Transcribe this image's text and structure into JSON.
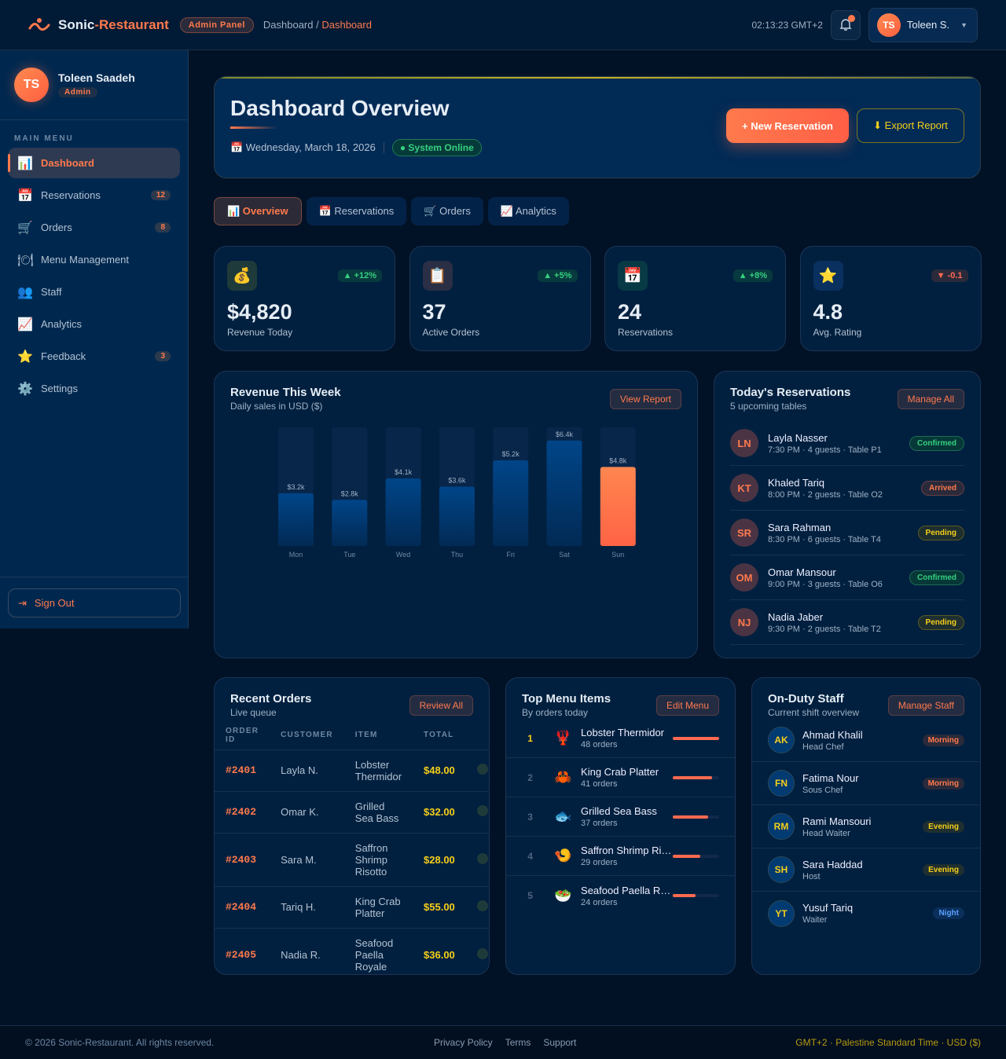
{
  "header": {
    "brand_a": "Sonic",
    "brand_b": "-Restaurant",
    "badge": "Admin Panel",
    "breadcrumb": [
      "Dashboard",
      "Dashboard"
    ],
    "clock": "02:13:23 GMT+2",
    "user_initials": "TS",
    "user_name": "Toleen S."
  },
  "sidebar": {
    "initials": "TS",
    "name": "Toleen Saadeh",
    "role": "Admin",
    "section": "MAIN MENU",
    "items": [
      {
        "icon": "📊",
        "label": "Dashboard",
        "badge": "",
        "active": true
      },
      {
        "icon": "📅",
        "label": "Reservations",
        "badge": "12"
      },
      {
        "icon": "🛒",
        "label": "Orders",
        "badge": "8"
      },
      {
        "icon": "🍽",
        "label": "Menu Management",
        "badge": ""
      },
      {
        "icon": "👥",
        "label": "Staff",
        "badge": ""
      },
      {
        "icon": "📈",
        "label": "Analytics",
        "badge": ""
      },
      {
        "icon": "⭐",
        "label": "Feedback",
        "badge": "3"
      },
      {
        "icon": "⚙️",
        "label": "Settings",
        "badge": ""
      }
    ],
    "sign_out": "Sign Out"
  },
  "hero": {
    "title": "Dashboard Overview",
    "date": "📅 Wednesday, March 18, 2026",
    "status": "● System Online",
    "new_btn": "+ New Reservation",
    "export_btn": "⬇ Export Report"
  },
  "tabs": [
    "📊 Overview",
    "📅 Reservations",
    "🛒 Orders",
    "📈 Analytics"
  ],
  "stats": [
    {
      "icon": "💰",
      "change": "▲ +12%",
      "dir": "up",
      "value": "$4,820",
      "label": "Revenue Today",
      "bg": "#1f3a3a"
    },
    {
      "icon": "📋",
      "change": "▲ +5%",
      "dir": "up",
      "value": "37",
      "label": "Active Orders",
      "bg": "#2a2f45"
    },
    {
      "icon": "📅",
      "change": "▲ +8%",
      "dir": "up",
      "value": "24",
      "label": "Reservations",
      "bg": "#073a45"
    },
    {
      "icon": "⭐",
      "change": "▼ -0.1",
      "dir": "dn",
      "value": "4.8",
      "label": "Avg. Rating",
      "bg": "#0a3060"
    }
  ],
  "revenue": {
    "title": "Revenue This Week",
    "subtitle": "Daily sales in USD ($)",
    "button": "View Report"
  },
  "chart_data": {
    "type": "bar",
    "categories": [
      "Mon",
      "Tue",
      "Wed",
      "Thu",
      "Fri",
      "Sat",
      "Sun"
    ],
    "values": [
      3200,
      2800,
      4100,
      3600,
      5200,
      6400,
      4800
    ],
    "labels": [
      "$3.2k",
      "$2.8k",
      "$4.1k",
      "$3.6k",
      "$5.2k",
      "$6.4k",
      "$4.8k"
    ],
    "ylim": [
      0,
      7200
    ],
    "highlight": "Sun",
    "colors": {
      "bar": "#00407a",
      "highlight": "#ff6a45"
    }
  },
  "reservations": {
    "title": "Today's Reservations",
    "subtitle": "5 upcoming tables",
    "button": "Manage All",
    "items": [
      {
        "initials": "LN",
        "name": "Layla Nasser",
        "detail": "7:30 PM · 4 guests · Table P1",
        "status": "Confirmed"
      },
      {
        "initials": "KT",
        "name": "Khaled Tariq",
        "detail": "8:00 PM · 2 guests · Table O2",
        "status": "Arrived"
      },
      {
        "initials": "SR",
        "name": "Sara Rahman",
        "detail": "8:30 PM · 6 guests · Table T4",
        "status": "Pending"
      },
      {
        "initials": "OM",
        "name": "Omar Mansour",
        "detail": "9:00 PM · 3 guests · Table O6",
        "status": "Confirmed"
      },
      {
        "initials": "NJ",
        "name": "Nadia Jaber",
        "detail": "9:30 PM · 2 guests · Table T2",
        "status": "Pending"
      }
    ]
  },
  "orders": {
    "title": "Recent Orders",
    "subtitle": "Live queue",
    "button": "Review All",
    "columns": [
      "ORDER ID",
      "CUSTOMER",
      "ITEM",
      "TOTAL"
    ],
    "rows": [
      [
        "#2401",
        "Layla N.",
        "Lobster Thermidor",
        "$48.00"
      ],
      [
        "#2402",
        "Omar K.",
        "Grilled Sea Bass",
        "$32.00"
      ],
      [
        "#2403",
        "Sara M.",
        "Saffron Shrimp Risotto",
        "$28.00"
      ],
      [
        "#2404",
        "Tariq H.",
        "King Crab Platter",
        "$55.00"
      ],
      [
        "#2405",
        "Nadia R.",
        "Seafood Paella Royale",
        "$36.00"
      ]
    ]
  },
  "menu": {
    "title": "Top Menu Items",
    "subtitle": "By orders today",
    "button": "Edit Menu",
    "items": [
      {
        "rank": "1",
        "icon": "🦞",
        "name": "Lobster Thermidor",
        "orders": "48 orders",
        "pct": 100
      },
      {
        "rank": "2",
        "icon": "🦀",
        "name": "King Crab Platter",
        "orders": "41 orders",
        "pct": 85
      },
      {
        "rank": "3",
        "icon": "🐟",
        "name": "Grilled Sea Bass",
        "orders": "37 orders",
        "pct": 77
      },
      {
        "rank": "4",
        "icon": "🍤",
        "name": "Saffron Shrimp Risotto",
        "orders": "29 orders",
        "pct": 60
      },
      {
        "rank": "5",
        "icon": "🥗",
        "name": "Seafood Paella Royale",
        "orders": "24 orders",
        "pct": 50
      }
    ]
  },
  "staff": {
    "title": "On-Duty Staff",
    "subtitle": "Current shift overview",
    "button": "Manage Staff",
    "items": [
      {
        "initials": "AK",
        "name": "Ahmad Khalil",
        "role": "Head Chef",
        "shift": "Morning"
      },
      {
        "initials": "FN",
        "name": "Fatima Nour",
        "role": "Sous Chef",
        "shift": "Morning"
      },
      {
        "initials": "RM",
        "name": "Rami Mansouri",
        "role": "Head Waiter",
        "shift": "Evening"
      },
      {
        "initials": "SH",
        "name": "Sara Haddad",
        "role": "Host",
        "shift": "Evening"
      },
      {
        "initials": "YT",
        "name": "Yusuf Tariq",
        "role": "Waiter",
        "shift": "Night"
      }
    ]
  },
  "footer": {
    "copyright": "© 2026 Sonic-Restaurant. All rights reserved.",
    "links": [
      "Privacy Policy",
      "Terms",
      "Support"
    ],
    "tz": "GMT+2 · Palestine Standard Time · USD ($)"
  }
}
